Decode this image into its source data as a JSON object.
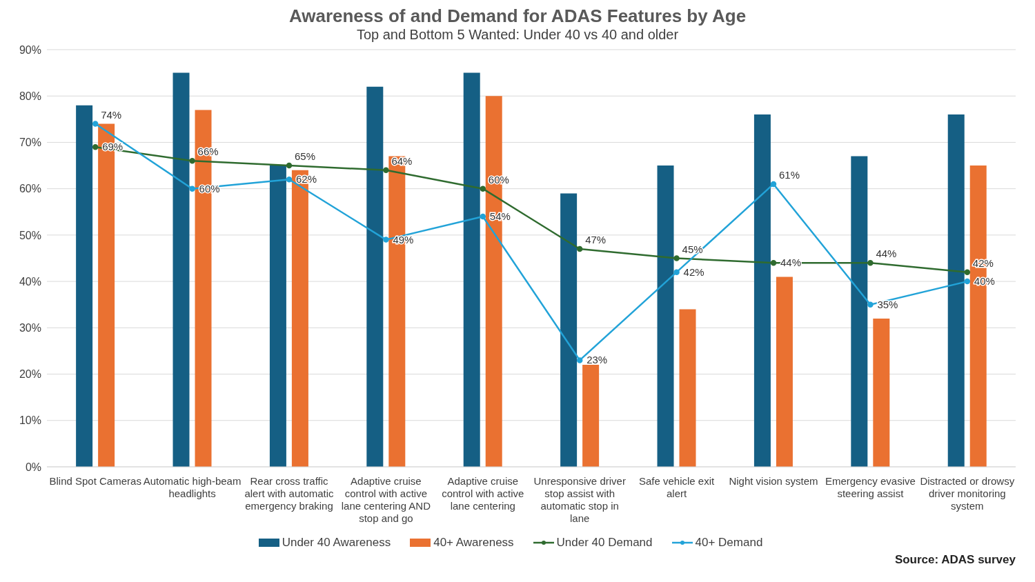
{
  "chart_data": {
    "type": "bar",
    "title": "Awareness of and Demand for ADAS Features by Age",
    "subtitle": "Top and Bottom 5 Wanted: Under 40 vs 40 and older",
    "categories": [
      "Blind Spot Cameras",
      "Automatic high-beam headlights",
      "Rear cross traffic alert with automatic emergency braking",
      "Adaptive cruise control with active lane centering AND stop and go",
      "Adaptive cruise control with active lane centering",
      "Unresponsive driver stop assist with automatic stop in lane",
      "Safe vehicle exit alert",
      "Night vision system",
      "Emergency evasive steering assist",
      "Distracted or drowsy driver monitoring system"
    ],
    "series": [
      {
        "name": "Under 40 Awareness",
        "color": "#155f84",
        "values": [
          78,
          85,
          65,
          82,
          85,
          59,
          65,
          76,
          67,
          76
        ]
      },
      {
        "name": "40+ Awareness",
        "color": "#ea7131",
        "values": [
          74,
          77,
          64,
          67,
          80,
          22,
          34,
          41,
          32,
          65
        ]
      },
      {
        "name": "Under 40 Demand",
        "type": "line",
        "color": "#2f6b2f",
        "values": [
          69,
          66,
          65,
          64,
          60,
          47,
          45,
          44,
          44,
          42
        ],
        "value_labels": [
          "69%",
          "66%",
          "65%",
          "64%",
          "60%",
          "47%",
          "45%",
          "44%",
          "44%",
          "42%"
        ]
      },
      {
        "name": "40+ Demand",
        "type": "line",
        "color": "#22a3d8",
        "values": [
          74,
          60,
          62,
          49,
          54,
          23,
          42,
          61,
          35,
          40
        ],
        "value_labels": [
          "74%",
          "60%",
          "62%",
          "49%",
          "54%",
          "23%",
          "42%",
          "61%",
          "35%",
          "40%"
        ]
      }
    ],
    "ylim": [
      0,
      90
    ],
    "yticks": [
      {
        "value": 0,
        "label": "0%"
      },
      {
        "value": 10,
        "label": "10%"
      },
      {
        "value": 20,
        "label": "20%"
      },
      {
        "value": 30,
        "label": "30%"
      },
      {
        "value": 40,
        "label": "40%"
      },
      {
        "value": 50,
        "label": "50%"
      },
      {
        "value": 60,
        "label": "60%"
      },
      {
        "value": 70,
        "label": "70%"
      },
      {
        "value": 80,
        "label": "80%"
      },
      {
        "value": 90,
        "label": "90%"
      }
    ],
    "grid": "y",
    "legend": "bottom",
    "marker": "circle",
    "line_style": "solid",
    "annotations": [
      "Source: ADAS survey"
    ]
  }
}
